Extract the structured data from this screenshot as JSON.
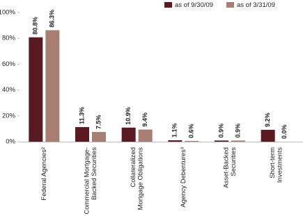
{
  "chart_data": {
    "type": "bar",
    "categories": [
      [
        "Federal Agencies²"
      ],
      [
        "Commercial Mortgage-",
        "Backed Securities"
      ],
      [
        "Collateralized",
        "Mortgage Obligations"
      ],
      [
        "Agency Debentures³"
      ],
      [
        "Asset-Backed",
        "Securities"
      ],
      [
        "Short-term",
        "Investments"
      ]
    ],
    "series": [
      {
        "name": "as of 9/30/09",
        "color": "#5a1a22",
        "values": [
          80.8,
          11.3,
          10.9,
          1.1,
          0.9,
          9.2
        ],
        "value_labels": [
          "80.8%",
          "11.3%",
          "10.9%",
          "1.1%",
          "0.9%",
          "9.2%"
        ]
      },
      {
        "name": "as of 3/31/09",
        "color": "#a97e72",
        "values": [
          86.3,
          7.5,
          9.4,
          0.6,
          0.9,
          0.0
        ],
        "value_labels": [
          "86.3%",
          "7.5%",
          "9.4%",
          "0.6%",
          "0.9%",
          "0.0%"
        ]
      }
    ],
    "ylim": [
      0,
      100
    ],
    "yticks": [
      {
        "value": 0,
        "label": "0%"
      },
      {
        "value": 20,
        "label": "20%"
      },
      {
        "value": 40,
        "label": "40%"
      },
      {
        "value": 60,
        "label": "60%"
      },
      {
        "value": 80,
        "label": "80%"
      },
      {
        "value": 100,
        "label": "100%"
      }
    ],
    "legend": "top-right"
  }
}
